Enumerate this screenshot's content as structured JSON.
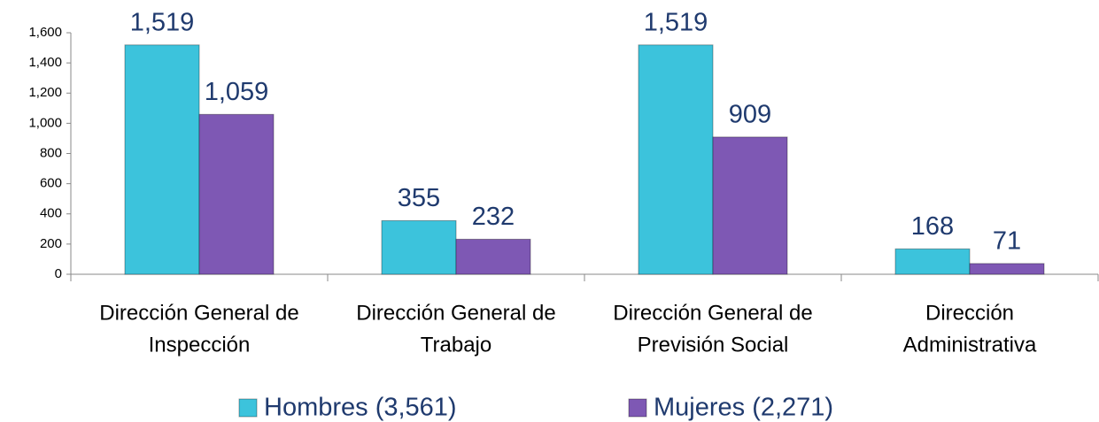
{
  "chart_data": {
    "type": "bar",
    "categories": [
      [
        "Dirección General de",
        "Inspección"
      ],
      [
        "Dirección General de",
        "Trabajo"
      ],
      [
        "Dirección General de",
        "Previsión Social"
      ],
      [
        "Dirección",
        "Administrativa"
      ]
    ],
    "series": [
      {
        "name": "Hombres (3,561)",
        "color": "#3cc3dc",
        "values": [
          1519,
          355,
          1519,
          168
        ],
        "value_labels": [
          "1,519",
          "355",
          "1,519",
          "168"
        ]
      },
      {
        "name": "Mujeres (2,271)",
        "color": "#7e58b4",
        "values": [
          1059,
          232,
          909,
          71
        ],
        "value_labels": [
          "1,059",
          "232",
          "909",
          "71"
        ]
      }
    ],
    "ylim": [
      0,
      1600
    ],
    "yticks": [
      0,
      200,
      400,
      600,
      800,
      {
        "value": 1000,
        "label": "1,000"
      },
      {
        "value": 1200,
        "label": "1,200"
      },
      {
        "value": 1400,
        "label": "1,400"
      },
      {
        "value": 1600,
        "label": "1,600"
      }
    ],
    "legend": "bottom"
  }
}
